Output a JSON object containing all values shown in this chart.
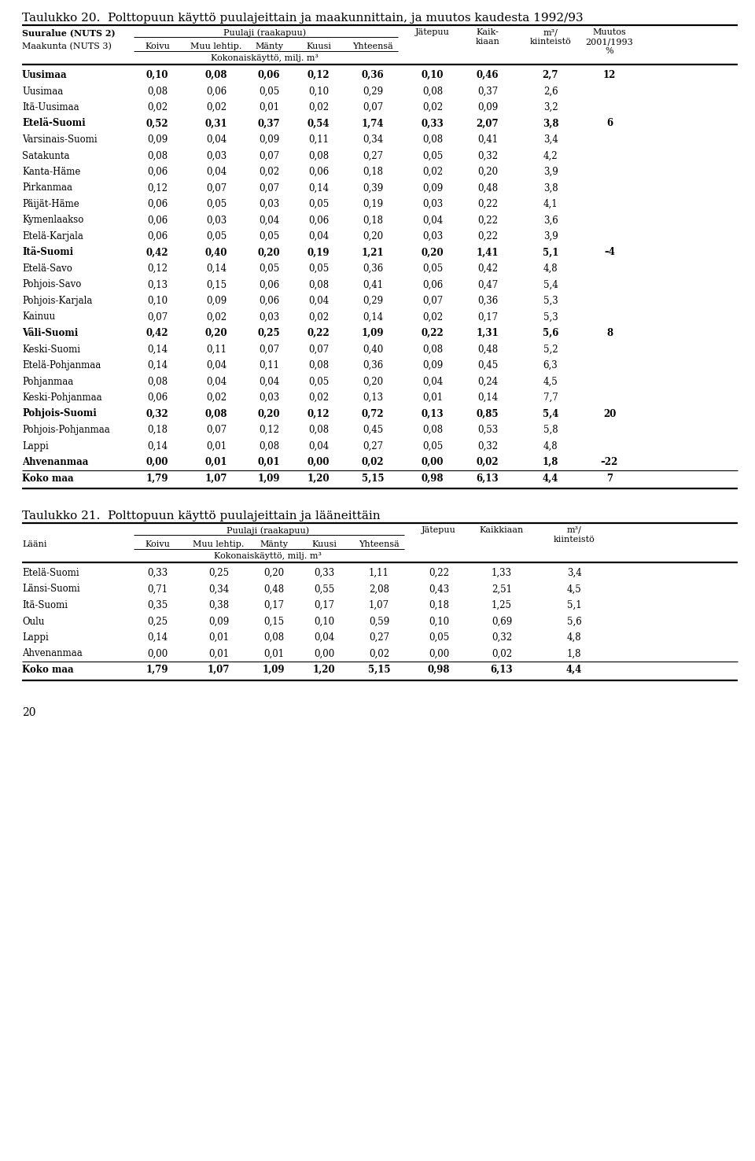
{
  "title1": "Taulukko 20.  Polttopuun käyttö puulajeittain ja maakunnittain, ja muutos kaudesta 1992/93",
  "title2": "Taulukko 21.  Polttopuun käyttö puulajeittain ja lääneittäin",
  "page_number": "20",
  "t1_header_row1_left": "Suuralue (NUTS 2)",
  "t1_header_row1_mid": "Puulaji (raakapuu)",
  "t1_header_row2_left": "Maakunta (NUTS 3)",
  "t1_subheader": "Kokonaiskäyttö, milj. m³",
  "t1_rows": [
    {
      "name": "Uusimaa",
      "bold": true,
      "vals": [
        "0,10",
        "0,08",
        "0,06",
        "0,12",
        "0,36",
        "0,10",
        "0,46",
        "2,7",
        "12"
      ]
    },
    {
      "name": "Uusimaa",
      "bold": false,
      "vals": [
        "0,08",
        "0,06",
        "0,05",
        "0,10",
        "0,29",
        "0,08",
        "0,37",
        "2,6",
        ""
      ]
    },
    {
      "name": "Itä-Uusimaa",
      "bold": false,
      "vals": [
        "0,02",
        "0,02",
        "0,01",
        "0,02",
        "0,07",
        "0,02",
        "0,09",
        "3,2",
        ""
      ]
    },
    {
      "name": "Etelä-Suomi",
      "bold": true,
      "vals": [
        "0,52",
        "0,31",
        "0,37",
        "0,54",
        "1,74",
        "0,33",
        "2,07",
        "3,8",
        "6"
      ]
    },
    {
      "name": "Varsinais-Suomi",
      "bold": false,
      "vals": [
        "0,09",
        "0,04",
        "0,09",
        "0,11",
        "0,34",
        "0,08",
        "0,41",
        "3,4",
        ""
      ]
    },
    {
      "name": "Satakunta",
      "bold": false,
      "vals": [
        "0,08",
        "0,03",
        "0,07",
        "0,08",
        "0,27",
        "0,05",
        "0,32",
        "4,2",
        ""
      ]
    },
    {
      "name": "Kanta-Häme",
      "bold": false,
      "vals": [
        "0,06",
        "0,04",
        "0,02",
        "0,06",
        "0,18",
        "0,02",
        "0,20",
        "3,9",
        ""
      ]
    },
    {
      "name": "Pirkanmaa",
      "bold": false,
      "vals": [
        "0,12",
        "0,07",
        "0,07",
        "0,14",
        "0,39",
        "0,09",
        "0,48",
        "3,8",
        ""
      ]
    },
    {
      "name": "Päijät-Häme",
      "bold": false,
      "vals": [
        "0,06",
        "0,05",
        "0,03",
        "0,05",
        "0,19",
        "0,03",
        "0,22",
        "4,1",
        ""
      ]
    },
    {
      "name": "Kymenlaakso",
      "bold": false,
      "vals": [
        "0,06",
        "0,03",
        "0,04",
        "0,06",
        "0,18",
        "0,04",
        "0,22",
        "3,6",
        ""
      ]
    },
    {
      "name": "Etelä-Karjala",
      "bold": false,
      "vals": [
        "0,06",
        "0,05",
        "0,05",
        "0,04",
        "0,20",
        "0,03",
        "0,22",
        "3,9",
        ""
      ]
    },
    {
      "name": "Itä-Suomi",
      "bold": true,
      "vals": [
        "0,42",
        "0,40",
        "0,20",
        "0,19",
        "1,21",
        "0,20",
        "1,41",
        "5,1",
        "–4"
      ]
    },
    {
      "name": "Etelä-Savo",
      "bold": false,
      "vals": [
        "0,12",
        "0,14",
        "0,05",
        "0,05",
        "0,36",
        "0,05",
        "0,42",
        "4,8",
        ""
      ]
    },
    {
      "name": "Pohjois-Savo",
      "bold": false,
      "vals": [
        "0,13",
        "0,15",
        "0,06",
        "0,08",
        "0,41",
        "0,06",
        "0,47",
        "5,4",
        ""
      ]
    },
    {
      "name": "Pohjois-Karjala",
      "bold": false,
      "vals": [
        "0,10",
        "0,09",
        "0,06",
        "0,04",
        "0,29",
        "0,07",
        "0,36",
        "5,3",
        ""
      ]
    },
    {
      "name": "Kainuu",
      "bold": false,
      "vals": [
        "0,07",
        "0,02",
        "0,03",
        "0,02",
        "0,14",
        "0,02",
        "0,17",
        "5,3",
        ""
      ]
    },
    {
      "name": "Väli-Suomi",
      "bold": true,
      "vals": [
        "0,42",
        "0,20",
        "0,25",
        "0,22",
        "1,09",
        "0,22",
        "1,31",
        "5,6",
        "8"
      ]
    },
    {
      "name": "Keski-Suomi",
      "bold": false,
      "vals": [
        "0,14",
        "0,11",
        "0,07",
        "0,07",
        "0,40",
        "0,08",
        "0,48",
        "5,2",
        ""
      ]
    },
    {
      "name": "Etelä-Pohjanmaa",
      "bold": false,
      "vals": [
        "0,14",
        "0,04",
        "0,11",
        "0,08",
        "0,36",
        "0,09",
        "0,45",
        "6,3",
        ""
      ]
    },
    {
      "name": "Pohjanmaa",
      "bold": false,
      "vals": [
        "0,08",
        "0,04",
        "0,04",
        "0,05",
        "0,20",
        "0,04",
        "0,24",
        "4,5",
        ""
      ]
    },
    {
      "name": "Keski-Pohjanmaa",
      "bold": false,
      "vals": [
        "0,06",
        "0,02",
        "0,03",
        "0,02",
        "0,13",
        "0,01",
        "0,14",
        "7,7",
        ""
      ]
    },
    {
      "name": "Pohjois-Suomi",
      "bold": true,
      "vals": [
        "0,32",
        "0,08",
        "0,20",
        "0,12",
        "0,72",
        "0,13",
        "0,85",
        "5,4",
        "20"
      ]
    },
    {
      "name": "Pohjois-Pohjanmaa",
      "bold": false,
      "vals": [
        "0,18",
        "0,07",
        "0,12",
        "0,08",
        "0,45",
        "0,08",
        "0,53",
        "5,8",
        ""
      ]
    },
    {
      "name": "Lappi",
      "bold": false,
      "vals": [
        "0,14",
        "0,01",
        "0,08",
        "0,04",
        "0,27",
        "0,05",
        "0,32",
        "4,8",
        ""
      ]
    },
    {
      "name": "Ahvenanmaa",
      "bold": true,
      "vals": [
        "0,00",
        "0,01",
        "0,01",
        "0,00",
        "0,02",
        "0,00",
        "0,02",
        "1,8",
        "–22"
      ]
    },
    {
      "name": "Koko maa",
      "bold": true,
      "vals": [
        "1,79",
        "1,07",
        "1,09",
        "1,20",
        "5,15",
        "0,98",
        "6,13",
        "4,4",
        "7"
      ]
    }
  ],
  "t2_header_row1_left": "Lääni",
  "t2_header_row1_mid": "Puulaji (raakapuu)",
  "t2_subheader": "Kokonaiskäyttö, milj. m³",
  "t2_rows": [
    {
      "name": "Etelä-Suomi",
      "bold": false,
      "vals": [
        "0,33",
        "0,25",
        "0,20",
        "0,33",
        "1,11",
        "0,22",
        "1,33",
        "3,4"
      ]
    },
    {
      "name": "Länsi-Suomi",
      "bold": false,
      "vals": [
        "0,71",
        "0,34",
        "0,48",
        "0,55",
        "2,08",
        "0,43",
        "2,51",
        "4,5"
      ]
    },
    {
      "name": "Itä-Suomi",
      "bold": false,
      "vals": [
        "0,35",
        "0,38",
        "0,17",
        "0,17",
        "1,07",
        "0,18",
        "1,25",
        "5,1"
      ]
    },
    {
      "name": "Oulu",
      "bold": false,
      "vals": [
        "0,25",
        "0,09",
        "0,15",
        "0,10",
        "0,59",
        "0,10",
        "0,69",
        "5,6"
      ]
    },
    {
      "name": "Lappi",
      "bold": false,
      "vals": [
        "0,14",
        "0,01",
        "0,08",
        "0,04",
        "0,27",
        "0,05",
        "0,32",
        "4,8"
      ]
    },
    {
      "name": "Ahvenanmaa",
      "bold": false,
      "vals": [
        "0,00",
        "0,01",
        "0,01",
        "0,00",
        "0,02",
        "0,00",
        "0,02",
        "1,8"
      ]
    },
    {
      "name": "Koko maa",
      "bold": true,
      "vals": [
        "1,79",
        "1,07",
        "1,09",
        "1,20",
        "5,15",
        "0,98",
        "6,13",
        "4,4"
      ]
    }
  ]
}
